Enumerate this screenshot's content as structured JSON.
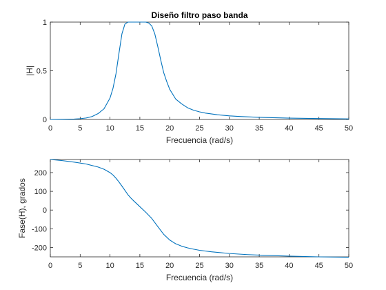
{
  "chart_data": [
    {
      "type": "line",
      "title": "Diseño filtro paso banda",
      "xlabel": "Frecuencia (rad/s)",
      "ylabel": "|H|",
      "xlim": [
        0,
        50
      ],
      "ylim": [
        0,
        1
      ],
      "xticks": [
        "0",
        "5",
        "10",
        "15",
        "20",
        "25",
        "30",
        "35",
        "40",
        "45",
        "50"
      ],
      "yticks": [
        "0",
        "0.5",
        "1"
      ],
      "color": "#0072BD",
      "grid": false,
      "series": [
        {
          "x": [
            0,
            2,
            4,
            5,
            6,
            7,
            8,
            9,
            10,
            10.5,
            11,
            11.5,
            12,
            12.5,
            13,
            13.5,
            14,
            14.5,
            15,
            15.5,
            16,
            16.5,
            17,
            17.5,
            18,
            18.5,
            19,
            19.5,
            20,
            21,
            22,
            23,
            24,
            25,
            26,
            28,
            30,
            32,
            35,
            40,
            45,
            50
          ],
          "y": [
            0.0,
            0.001,
            0.004,
            0.008,
            0.015,
            0.03,
            0.06,
            0.11,
            0.22,
            0.32,
            0.47,
            0.68,
            0.88,
            0.98,
            1.0,
            1.0,
            1.0,
            1.0,
            1.0,
            1.0,
            1.0,
            0.99,
            0.96,
            0.88,
            0.75,
            0.61,
            0.48,
            0.39,
            0.31,
            0.21,
            0.16,
            0.12,
            0.095,
            0.078,
            0.065,
            0.048,
            0.037,
            0.03,
            0.022,
            0.014,
            0.009,
            0.006
          ]
        }
      ]
    },
    {
      "type": "line",
      "title": "",
      "xlabel": "Frecuencia (rad/s)",
      "ylabel": "Fase(H), grados",
      "xlim": [
        0,
        50
      ],
      "ylim": [
        -250,
        270
      ],
      "xticks": [
        "0",
        "5",
        "10",
        "15",
        "20",
        "25",
        "30",
        "35",
        "40",
        "45",
        "50"
      ],
      "yticks": [
        "200",
        "100",
        "0",
        "-100",
        "-200"
      ],
      "ytick_values": [
        200,
        100,
        0,
        -100,
        -200
      ],
      "color": "#0072BD",
      "grid": false,
      "series": [
        {
          "x": [
            0,
            2,
            4,
            6,
            8,
            9,
            10,
            10.5,
            11,
            11.5,
            12,
            12.5,
            13,
            13.5,
            14,
            15,
            16,
            17,
            18,
            19,
            20,
            21,
            22,
            23,
            24,
            25,
            27,
            30,
            33,
            36,
            40,
            45,
            50
          ],
          "y": [
            270,
            264,
            256,
            246,
            230,
            218,
            200,
            187,
            170,
            150,
            128,
            105,
            82,
            64,
            48,
            18,
            -12,
            -45,
            -88,
            -130,
            -160,
            -180,
            -193,
            -202,
            -209,
            -215,
            -223,
            -232,
            -238,
            -242,
            -246,
            -250,
            -252
          ]
        }
      ]
    }
  ]
}
